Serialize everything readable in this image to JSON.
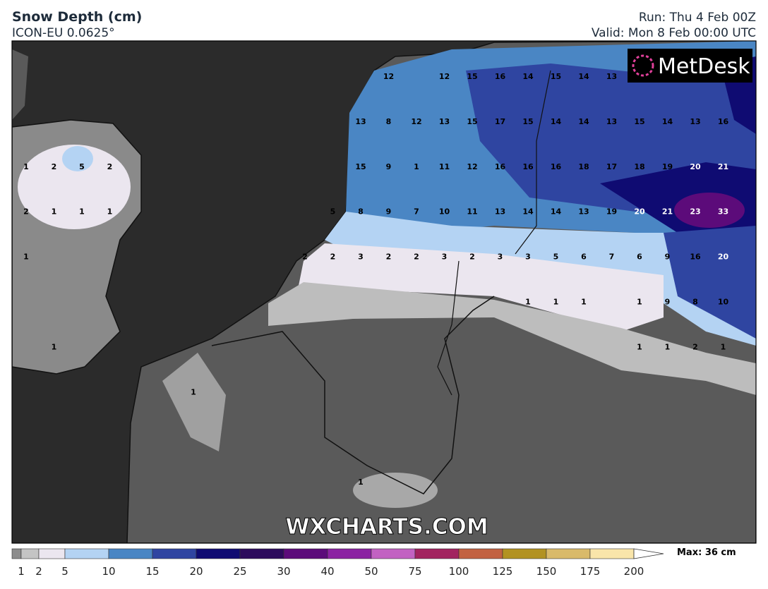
{
  "header": {
    "title": "Snow Depth (cm)",
    "model": "ICON-EU 0.0625°",
    "run": "Run: Thu 4 Feb 00Z",
    "valid": "Valid: Mon 8 Feb 00:00 UTC"
  },
  "logo": "MetDesk",
  "watermark": "WXCHARTS.COM",
  "map_labels": [
    [
      null,
      null,
      null,
      null,
      null,
      null,
      null,
      null,
      null,
      null,
      null,
      null,
      null,
      12,
      null,
      12,
      15,
      16,
      14,
      15,
      14,
      13,
      null,
      null,
      null,
      null
    ],
    [
      null,
      null,
      null,
      null,
      null,
      null,
      null,
      null,
      null,
      null,
      null,
      null,
      13,
      8,
      12,
      13,
      15,
      17,
      15,
      14,
      14,
      13,
      15,
      14,
      13,
      16
    ],
    [
      1,
      2,
      5,
      2,
      null,
      null,
      null,
      null,
      null,
      null,
      null,
      null,
      15,
      9,
      1,
      11,
      12,
      16,
      16,
      16,
      18,
      17,
      18,
      19,
      20,
      21
    ],
    [
      2,
      1,
      1,
      1,
      null,
      null,
      null,
      null,
      null,
      null,
      null,
      5,
      8,
      9,
      7,
      10,
      11,
      13,
      14,
      14,
      13,
      19,
      20,
      21,
      23,
      33
    ],
    [
      1,
      null,
      null,
      null,
      null,
      null,
      null,
      null,
      null,
      null,
      2,
      2,
      3,
      2,
      2,
      3,
      2,
      3,
      3,
      5,
      6,
      7,
      6,
      9,
      16,
      20
    ],
    [
      null,
      null,
      null,
      null,
      null,
      null,
      null,
      null,
      null,
      null,
      null,
      null,
      null,
      null,
      null,
      null,
      null,
      null,
      1,
      1,
      1,
      null,
      1,
      9,
      8,
      10
    ],
    [
      null,
      1,
      null,
      null,
      null,
      null,
      null,
      null,
      null,
      null,
      null,
      null,
      null,
      null,
      null,
      null,
      null,
      null,
      null,
      null,
      null,
      null,
      1,
      1,
      2,
      1
    ],
    [
      null,
      null,
      null,
      null,
      null,
      null,
      1,
      null,
      null,
      null,
      null,
      null,
      null,
      null,
      null,
      null,
      null,
      null,
      null,
      null,
      null,
      null,
      null,
      null,
      null,
      null
    ],
    [
      null,
      null,
      null,
      null,
      null,
      null,
      null,
      null,
      null,
      null,
      null,
      null,
      null,
      null,
      null,
      null,
      null,
      null,
      null,
      null,
      null,
      null,
      null,
      null,
      null,
      null
    ],
    [
      null,
      null,
      null,
      null,
      null,
      null,
      null,
      null,
      null,
      null,
      null,
      null,
      1,
      null,
      null,
      null,
      null,
      null,
      null,
      null,
      null,
      null,
      null,
      null,
      null,
      null
    ]
  ],
  "legend": {
    "levels": [
      1,
      2,
      5,
      10,
      15,
      20,
      25,
      30,
      40,
      50,
      75,
      100,
      125,
      150,
      175,
      200
    ],
    "colors": [
      "#8c8c8c",
      "#c4c4c4",
      "#ebe6ef",
      "#b4d3f3",
      "#4a86c4",
      "#2f45a1",
      "#0f0b72",
      "#2c0b5c",
      "#5c0b7a",
      "#8b22a2",
      "#c262c2",
      "#a2235f",
      "#c26242",
      "#b29222",
      "#d9ba6a",
      "#f9e5aa"
    ],
    "max": "Max: 36 cm"
  }
}
